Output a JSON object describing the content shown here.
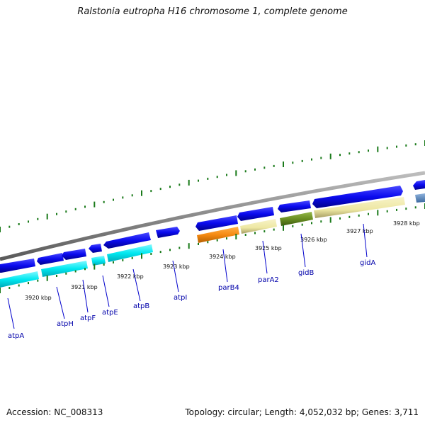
{
  "title": "Ralstonia eutropha H16 chromosome 1, complete genome",
  "footer": {
    "accession": "Accession: NC_008313",
    "summary": "Topology: circular; Length: 4,052,032 bp; Genes: 3,711"
  },
  "colors": {
    "backbone": "#8a8a8a",
    "forward_gene": "#0a0aee",
    "atp_reverse": "#00e8f0",
    "parB": "#f58a12",
    "parA_gidA": "#ede7a2",
    "gidB": "#6a8f22",
    "tick": "#1a7a1a",
    "label": "#0000aa"
  },
  "tick_labels": [
    "3920 kbp",
    "3921 kbp",
    "3922 kbp",
    "3923 kbp",
    "3924 kbp",
    "3925 kbp",
    "3926 kbp",
    "3927 kbp",
    "3928 kbp"
  ],
  "gene_labels": [
    "atpA",
    "atpH",
    "atpF",
    "atpE",
    "atpB",
    "atpI",
    "parB4",
    "parA2",
    "gidB",
    "gidA"
  ]
}
